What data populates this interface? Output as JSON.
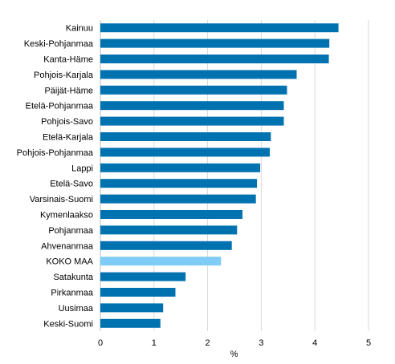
{
  "chart_data": {
    "type": "bar",
    "orientation": "horizontal",
    "title": "",
    "xlabel": "%",
    "ylabel": "",
    "xlim": [
      0,
      5
    ],
    "x_ticks": [
      "0",
      "1",
      "2",
      "3",
      "4",
      "5"
    ],
    "grid": true,
    "categories": [
      "Kainuu",
      "Keski-Pohjanmaa",
      "Kanta-Häme",
      "Pohjois-Karjala",
      "Päijät-Häme",
      "Etelä-Pohjanmaa",
      "Pohjois-Savo",
      "Etelä-Karjala",
      "Pohjois-Pohjanmaa",
      "Lappi",
      "Etelä-Savo",
      "Varsinais-Suomi",
      "Kymenlaakso",
      "Pohjanmaa",
      "Ahvenanmaa",
      "KOKO MAA",
      "Satakunta",
      "Pirkanmaa",
      "Uusimaa",
      "Keski-Suomi"
    ],
    "values": [
      4.44,
      4.27,
      4.26,
      3.66,
      3.48,
      3.42,
      3.42,
      3.18,
      3.16,
      2.98,
      2.92,
      2.9,
      2.65,
      2.55,
      2.45,
      2.25,
      1.59,
      1.4,
      1.17,
      1.12
    ],
    "colors": {
      "default": "#0072b0",
      "highlight": "#7fcdf7"
    },
    "highlight_category": "KOKO MAA"
  }
}
